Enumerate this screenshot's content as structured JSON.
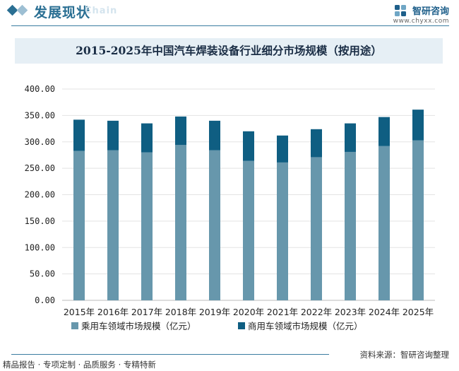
{
  "header": {
    "title": "发展现状",
    "watermark": "Chain",
    "brand_name": "智研咨询",
    "brand_url": "www.chyxx.com"
  },
  "colors": {
    "primary": "#6797ac",
    "secondary": "#0f5e82",
    "header": "#2a6f93",
    "grid": "#e3e3e3"
  },
  "chart_data": {
    "type": "bar",
    "stacked": true,
    "title": "2015-2025年中国汽车焊装设备行业细分市场规模（按用途）",
    "categories": [
      "2015年",
      "2016年",
      "2017年",
      "2018年",
      "2019年",
      "2020年",
      "2021年",
      "2022年",
      "2023年",
      "2024年",
      "2025年"
    ],
    "series": [
      {
        "name": "乘用车领域市场规模（亿元）",
        "values": [
          283,
          284,
          280,
          294,
          284,
          264,
          261,
          271,
          281,
          292,
          303
        ]
      },
      {
        "name": "商用车领域市场规模（亿元）",
        "values": [
          59,
          56,
          55,
          54,
          56,
          56,
          51,
          53,
          54,
          55,
          58
        ]
      }
    ],
    "ylim": [
      0,
      400
    ],
    "yticks": [
      "0.00",
      "50.00",
      "100.00",
      "150.00",
      "200.00",
      "250.00",
      "300.00",
      "350.00",
      "400.00"
    ],
    "legend_position": "bottom",
    "grid": true
  },
  "footer": {
    "left": "精品报告 · 专项定制 · 品质服务 · 专精特新",
    "source": "资料来源：智研咨询整理"
  }
}
